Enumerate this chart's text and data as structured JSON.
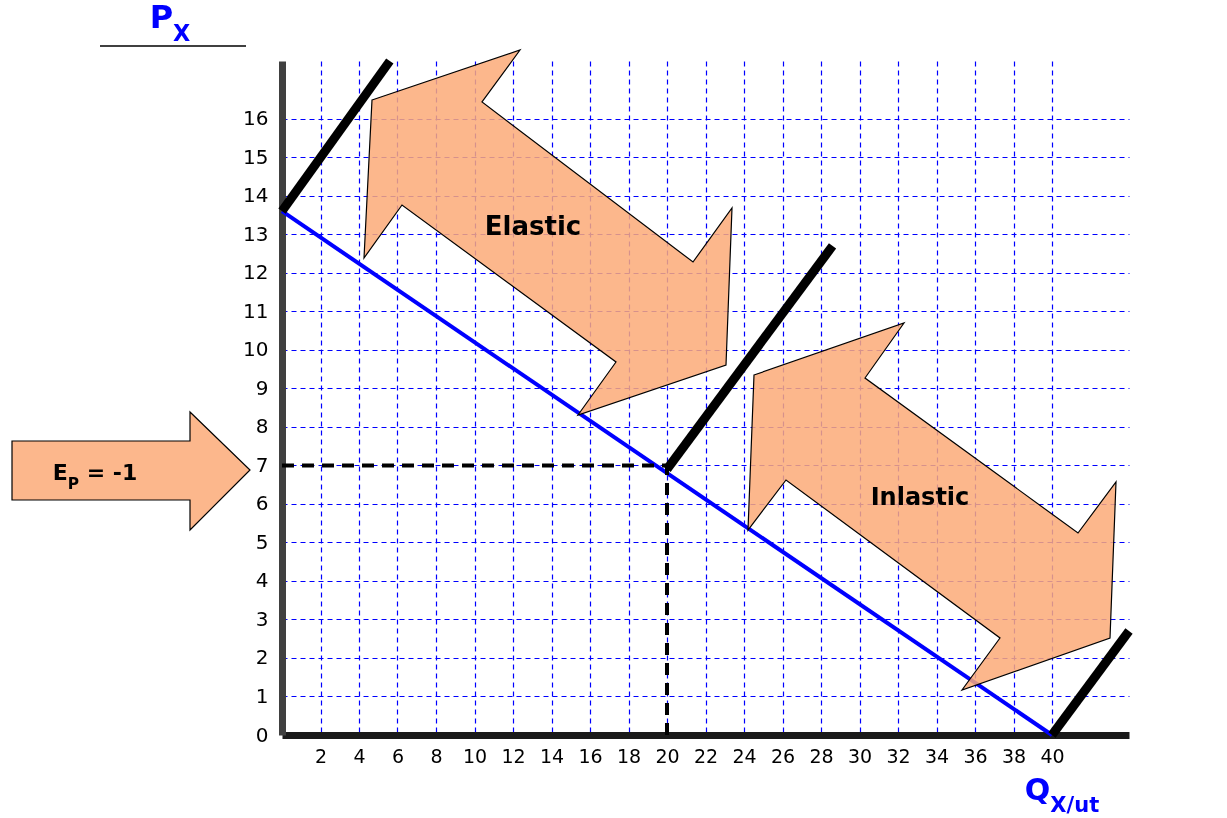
{
  "chart_data": {
    "type": "line",
    "xlabel": "Q$_{X/ut}$",
    "ylabel": "P$_{X}$",
    "series": [
      {
        "color": "#0000ff",
        "values": [
          13.6,
          0
        ],
        "x": [
          0,
          40
        ]
      },
      {
        "color": "#000000",
        "values": [
          13.6,
          17.5
        ],
        "x": [
          0,
          5.6
        ]
      },
      {
        "color": "#000000",
        "values": [
          6.9,
          12.7
        ],
        "x": [
          20,
          28.6
        ]
      },
      {
        "color": "#000000",
        "values": [
          0,
          2.7
        ],
        "x": [
          40,
          44
        ]
      }
    ],
    "xlim": [
      0,
      44
    ],
    "ylim": [
      0,
      17.5
    ],
    "xticks": [
      {
        "value": 0,
        "label": null
      },
      2,
      4,
      6,
      8,
      10,
      12,
      14,
      16,
      18,
      20,
      22,
      24,
      26,
      28,
      30,
      32,
      34,
      36,
      38,
      40
    ],
    "yticks": [
      0,
      1,
      2,
      3,
      4,
      5,
      6,
      7,
      8,
      9,
      10,
      11,
      12,
      13,
      14,
      15,
      16
    ],
    "grid": true,
    "ref_lines": [
      {
        "axis": "x",
        "value": 20,
        "line_style": "dashed",
        "color": "#000000"
      },
      {
        "axis": "y",
        "value": 7,
        "line_style": "dashed",
        "color": "#000000"
      }
    ],
    "annotations": [
      "Elastic",
      "Inlastic",
      "E$_{P}$ = -1"
    ]
  }
}
